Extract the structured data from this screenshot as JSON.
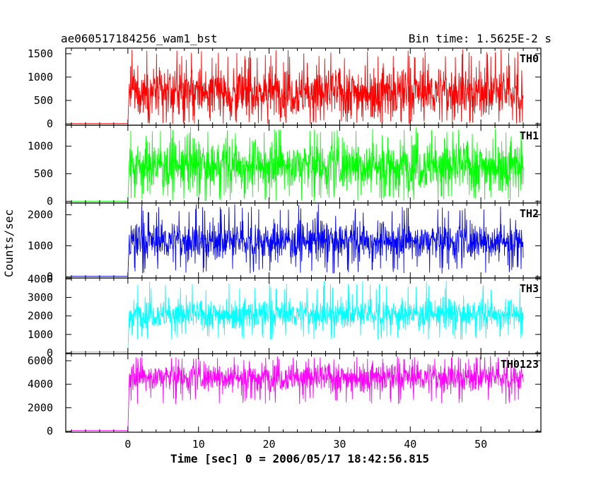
{
  "chart_data": {
    "type": "line",
    "title": "ae060517184256_wam1_bst",
    "subtitle": "Bin time: 1.5625E-2 s",
    "xlabel": "Time [sec] 0 = 2006/05/17 18:42:56.815",
    "ylabel": "Counts/sec",
    "xlim": [
      -8.8,
      58.5
    ],
    "x_ticks": [
      0,
      10,
      20,
      30,
      40,
      50
    ],
    "grid": false,
    "legend": "none",
    "series_time_range": {
      "pre_trigger": [
        -8,
        0
      ],
      "post_trigger": [
        0.2,
        56.0
      ]
    },
    "series": [
      {
        "name": "TH0",
        "color": "#ff0000",
        "ylim": [
          -30,
          1620
        ],
        "y_ticks": [
          0,
          500,
          1000,
          1500
        ],
        "pre_trigger_level": 5,
        "mean": 680,
        "band_low": 150,
        "band_high": 1200,
        "min": 0,
        "max": 1600
      },
      {
        "name": "TH1",
        "color": "#00ff00",
        "ylim": [
          -30,
          1380
        ],
        "y_ticks": [
          0,
          500,
          1000
        ],
        "pre_trigger_level": 5,
        "mean": 650,
        "band_low": 200,
        "band_high": 1100,
        "min": 0,
        "max": 1350
      },
      {
        "name": "TH2",
        "color": "#0000ff",
        "ylim": [
          -40,
          2380
        ],
        "y_ticks": [
          0,
          1000,
          2000
        ],
        "pre_trigger_level": 20,
        "mean": 1150,
        "band_low": 550,
        "band_high": 1750,
        "min": 100,
        "max": 2350
      },
      {
        "name": "TH3",
        "color": "#00ffff",
        "ylim": [
          -40,
          4050
        ],
        "y_ticks": [
          0,
          1000,
          2000,
          3000,
          4000
        ],
        "pre_trigger_level": 50,
        "mean": 2100,
        "band_low": 1400,
        "band_high": 2900,
        "min": 700,
        "max": 3900
      },
      {
        "name": "TH0123",
        "color": "#ff00ff",
        "ylim": [
          -80,
          6600
        ],
        "y_ticks": [
          0,
          2000,
          4000,
          6000
        ],
        "pre_trigger_level": 60,
        "mean": 4600,
        "band_low": 3400,
        "band_high": 5800,
        "min": 2300,
        "max": 6400
      }
    ]
  }
}
